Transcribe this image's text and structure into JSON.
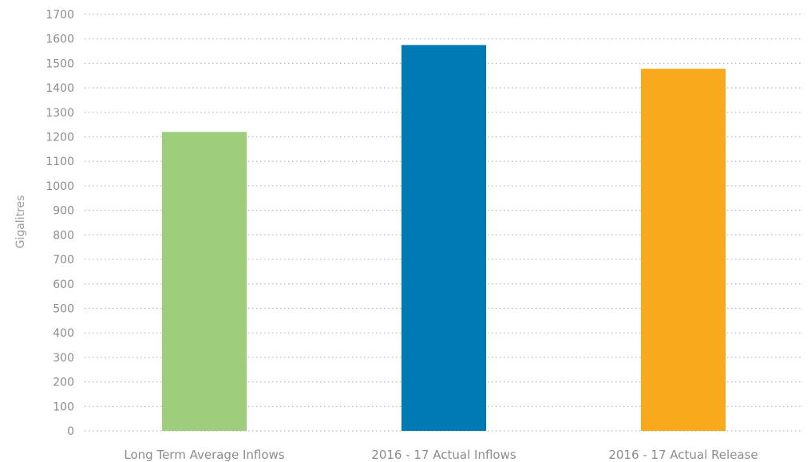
{
  "chart_data": {
    "type": "bar",
    "title": "",
    "xlabel": "",
    "ylabel": "Gigalitres",
    "ylim": [
      0,
      1700
    ],
    "ytick_step": 100,
    "grid": true,
    "legend": "none",
    "categories": [
      "Long Term Average Inflows",
      "2016 - 17 Actual Inflows",
      "2016 - 17 Actual Release"
    ],
    "values": [
      1220,
      1575,
      1478
    ],
    "colors": [
      "#9ecd7b",
      "#007ab5",
      "#f8aa1c"
    ],
    "yticks": [
      "0",
      "100",
      "200",
      "300",
      "400",
      "500",
      "600",
      "700",
      "800",
      "900",
      "1000",
      "1100",
      "1200",
      "1300",
      "1400",
      "1500",
      "1600",
      "1700"
    ]
  }
}
